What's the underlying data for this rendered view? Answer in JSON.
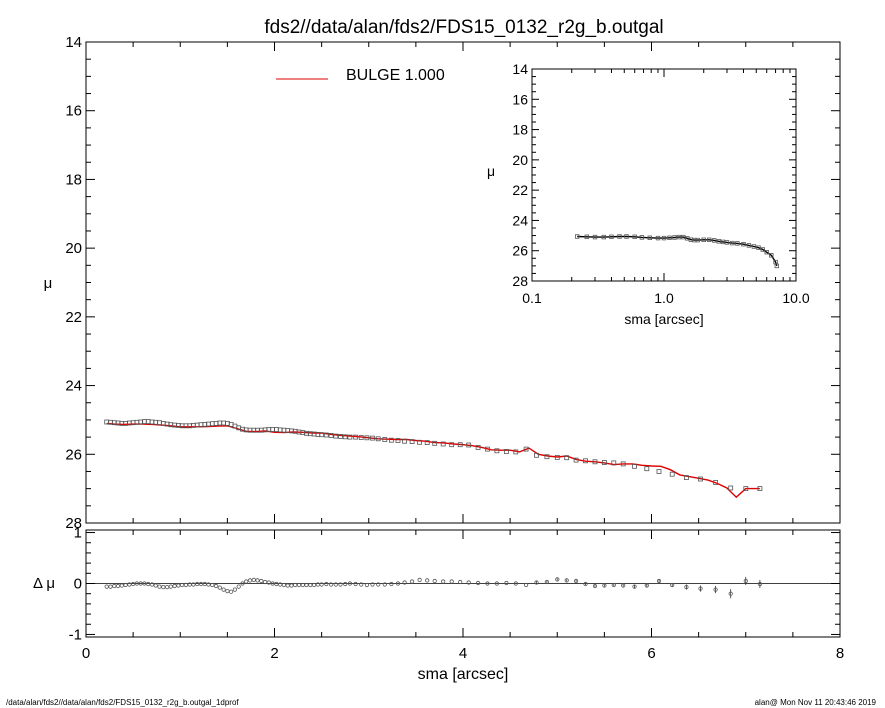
{
  "chart_data": [
    {
      "type": "line",
      "id": "main-profile",
      "title": "fds2//data/alan/fds2/FDS15_0132_r2g_b.outgal",
      "ylabel": "μ",
      "xlim": [
        0,
        8
      ],
      "ylim": [
        28,
        14
      ],
      "y_inverted": true,
      "grid": false,
      "yticks": [
        "14",
        "16",
        "18",
        "20",
        "22",
        "24",
        "26",
        "28"
      ],
      "legend": {
        "placement": "top-center",
        "label": "BULGE  1.000",
        "color": "#dd0000"
      },
      "series": [
        {
          "name": "data",
          "style": "squares",
          "color": "#555555",
          "x": [
            0.22,
            0.26,
            0.3,
            0.34,
            0.38,
            0.42,
            0.46,
            0.5,
            0.54,
            0.58,
            0.62,
            0.66,
            0.7,
            0.74,
            0.78,
            0.82,
            0.86,
            0.9,
            0.94,
            0.98,
            1.02,
            1.06,
            1.1,
            1.14,
            1.18,
            1.22,
            1.26,
            1.3,
            1.34,
            1.38,
            1.42,
            1.46,
            1.5,
            1.54,
            1.58,
            1.62,
            1.66,
            1.7,
            1.74,
            1.78,
            1.82,
            1.86,
            1.9,
            1.94,
            1.98,
            2.02,
            2.06,
            2.1,
            2.14,
            2.18,
            2.22,
            2.26,
            2.3,
            2.34,
            2.38,
            2.42,
            2.46,
            2.5,
            2.55,
            2.6,
            2.65,
            2.7,
            2.75,
            2.8,
            2.86,
            2.92,
            2.98,
            3.04,
            3.1,
            3.17,
            3.24,
            3.31,
            3.38,
            3.46,
            3.54,
            3.62,
            3.7,
            3.79,
            3.88,
            3.97,
            4.06,
            4.16,
            4.26,
            4.36,
            4.46,
            4.56,
            4.67,
            4.78,
            4.89,
            5.0,
            5.1,
            5.2,
            5.3,
            5.4,
            5.5,
            5.6,
            5.7,
            5.82,
            5.95,
            6.08,
            6.22,
            6.37,
            6.52,
            6.68,
            6.84,
            7.0,
            7.15
          ],
          "y": [
            25.06,
            25.07,
            25.08,
            25.09,
            25.1,
            25.1,
            25.09,
            25.08,
            25.07,
            25.06,
            25.05,
            25.05,
            25.06,
            25.07,
            25.08,
            25.1,
            25.12,
            25.14,
            25.15,
            25.16,
            25.17,
            25.17,
            25.17,
            25.16,
            25.15,
            25.14,
            25.13,
            25.12,
            25.11,
            25.1,
            25.09,
            25.09,
            25.1,
            25.13,
            25.18,
            25.23,
            25.27,
            25.29,
            25.3,
            25.3,
            25.3,
            25.3,
            25.29,
            25.28,
            25.28,
            25.28,
            25.29,
            25.3,
            25.31,
            25.32,
            25.33,
            25.35,
            25.37,
            25.39,
            25.4,
            25.41,
            25.42,
            25.43,
            25.44,
            25.45,
            25.47,
            25.48,
            25.49,
            25.5,
            25.5,
            25.51,
            25.52,
            25.53,
            25.55,
            25.57,
            25.59,
            25.6,
            25.62,
            25.63,
            25.65,
            25.66,
            25.68,
            25.7,
            25.72,
            25.72,
            25.73,
            25.8,
            25.85,
            25.9,
            25.92,
            25.93,
            25.85,
            26.03,
            26.07,
            26.09,
            26.1,
            26.17,
            26.19,
            26.22,
            26.24,
            26.25,
            26.28,
            26.35,
            26.42,
            26.5,
            26.58,
            26.68,
            26.72,
            26.82,
            26.98,
            27.0,
            27.0
          ]
        },
        {
          "name": "BULGE  1.000",
          "style": "line",
          "color": "#dd0000",
          "x": [
            0.22,
            0.3,
            0.4,
            0.5,
            0.6,
            0.7,
            0.8,
            0.9,
            1.0,
            1.1,
            1.2,
            1.3,
            1.4,
            1.5,
            1.6,
            1.7,
            1.8,
            1.9,
            2.0,
            2.1,
            2.2,
            2.3,
            2.4,
            2.5,
            2.6,
            2.7,
            2.8,
            2.9,
            3.0,
            3.1,
            3.2,
            3.3,
            3.4,
            3.5,
            3.6,
            3.7,
            3.8,
            3.9,
            4.0,
            4.1,
            4.2,
            4.3,
            4.4,
            4.5,
            4.6,
            4.7,
            4.8,
            4.9,
            5.0,
            5.1,
            5.2,
            5.3,
            5.4,
            5.5,
            5.6,
            5.7,
            5.8,
            5.9,
            6.0,
            6.1,
            6.2,
            6.3,
            6.4,
            6.5,
            6.6,
            6.7,
            6.8,
            6.9,
            7.0,
            7.1,
            7.15
          ],
          "y": [
            25.1,
            25.12,
            25.13,
            25.12,
            25.12,
            25.13,
            25.15,
            25.17,
            25.2,
            25.2,
            25.2,
            25.19,
            25.18,
            25.17,
            25.25,
            25.33,
            25.34,
            25.32,
            25.36,
            25.37,
            25.35,
            25.36,
            25.38,
            25.38,
            25.42,
            25.45,
            25.47,
            25.49,
            25.52,
            25.55,
            25.56,
            25.57,
            25.57,
            25.6,
            25.62,
            25.66,
            25.67,
            25.7,
            25.72,
            25.75,
            25.8,
            25.87,
            25.88,
            25.88,
            25.93,
            25.82,
            26.0,
            26.05,
            26.08,
            26.05,
            26.15,
            26.2,
            26.22,
            26.25,
            26.3,
            26.28,
            26.28,
            26.32,
            26.34,
            26.35,
            26.45,
            26.6,
            26.65,
            26.7,
            26.75,
            26.85,
            26.98,
            27.25,
            27.0,
            27.0,
            27.0
          ]
        }
      ]
    },
    {
      "type": "scatter",
      "id": "residuals",
      "xlabel": "sma [arcsec]",
      "ylabel": "Δ μ",
      "xlim": [
        0,
        8
      ],
      "ylim": [
        -1.05,
        1.05
      ],
      "grid": false,
      "xticks": [
        "0",
        "2",
        "4",
        "6",
        "8"
      ],
      "yticks": [
        "-1",
        "0",
        "1"
      ],
      "zero_line": true,
      "series": [
        {
          "name": "residual",
          "style": "circles",
          "color": "#555555",
          "x": [
            0.22,
            0.26,
            0.3,
            0.34,
            0.38,
            0.42,
            0.46,
            0.5,
            0.54,
            0.58,
            0.62,
            0.66,
            0.7,
            0.74,
            0.78,
            0.82,
            0.86,
            0.9,
            0.94,
            0.98,
            1.02,
            1.06,
            1.1,
            1.14,
            1.18,
            1.22,
            1.26,
            1.3,
            1.34,
            1.38,
            1.42,
            1.46,
            1.5,
            1.54,
            1.58,
            1.62,
            1.66,
            1.7,
            1.74,
            1.78,
            1.82,
            1.86,
            1.9,
            1.94,
            1.98,
            2.02,
            2.06,
            2.1,
            2.14,
            2.18,
            2.22,
            2.26,
            2.3,
            2.34,
            2.38,
            2.42,
            2.46,
            2.5,
            2.55,
            2.6,
            2.65,
            2.7,
            2.75,
            2.8,
            2.86,
            2.92,
            2.98,
            3.04,
            3.1,
            3.17,
            3.24,
            3.31,
            3.38,
            3.46,
            3.54,
            3.62,
            3.7,
            3.79,
            3.88,
            3.97,
            4.06,
            4.16,
            4.26,
            4.36,
            4.46,
            4.56,
            4.67,
            4.78,
            4.89,
            5.0,
            5.1,
            5.2,
            5.3,
            5.4,
            5.5,
            5.6,
            5.7,
            5.82,
            5.95,
            6.08,
            6.22,
            6.37,
            6.52,
            6.68,
            6.84,
            7.0,
            7.15
          ],
          "y": [
            -0.06,
            -0.06,
            -0.05,
            -0.05,
            -0.04,
            -0.03,
            -0.02,
            -0.01,
            0.0,
            0.0,
            0.0,
            -0.01,
            -0.02,
            -0.04,
            -0.06,
            -0.07,
            -0.07,
            -0.06,
            -0.05,
            -0.04,
            -0.03,
            -0.03,
            -0.02,
            -0.02,
            -0.01,
            -0.01,
            -0.01,
            -0.02,
            -0.03,
            -0.05,
            -0.08,
            -0.12,
            -0.15,
            -0.16,
            -0.12,
            -0.06,
            0.0,
            0.04,
            0.06,
            0.07,
            0.06,
            0.05,
            0.03,
            0.02,
            0.0,
            -0.01,
            -0.02,
            -0.03,
            -0.04,
            -0.04,
            -0.03,
            -0.03,
            -0.03,
            -0.03,
            -0.03,
            -0.03,
            -0.02,
            -0.02,
            -0.01,
            -0.02,
            -0.02,
            -0.02,
            -0.01,
            0.0,
            -0.01,
            -0.02,
            -0.03,
            -0.02,
            -0.02,
            -0.02,
            -0.01,
            0.0,
            0.02,
            0.04,
            0.07,
            0.06,
            0.05,
            0.04,
            0.04,
            0.03,
            0.02,
            0.01,
            0.0,
            0.0,
            0.01,
            0.0,
            -0.03,
            0.02,
            0.03,
            0.08,
            0.06,
            0.05,
            -0.01,
            -0.05,
            -0.04,
            -0.03,
            -0.04,
            -0.06,
            -0.04,
            0.05,
            -0.03,
            -0.07,
            -0.1,
            -0.12,
            -0.2,
            0.05,
            -0.01
          ],
          "err": [
            0.01,
            0.01,
            0.01,
            0.01,
            0.01,
            0.01,
            0.01,
            0.01,
            0.01,
            0.01,
            0.01,
            0.01,
            0.01,
            0.01,
            0.01,
            0.01,
            0.01,
            0.01,
            0.01,
            0.01,
            0.01,
            0.01,
            0.01,
            0.01,
            0.01,
            0.01,
            0.01,
            0.01,
            0.01,
            0.01,
            0.01,
            0.01,
            0.01,
            0.01,
            0.01,
            0.01,
            0.01,
            0.01,
            0.01,
            0.01,
            0.01,
            0.01,
            0.01,
            0.01,
            0.01,
            0.01,
            0.01,
            0.01,
            0.01,
            0.01,
            0.01,
            0.01,
            0.01,
            0.01,
            0.01,
            0.01,
            0.01,
            0.01,
            0.01,
            0.01,
            0.01,
            0.01,
            0.01,
            0.01,
            0.01,
            0.01,
            0.01,
            0.01,
            0.01,
            0.01,
            0.01,
            0.01,
            0.01,
            0.01,
            0.01,
            0.01,
            0.01,
            0.01,
            0.01,
            0.01,
            0.01,
            0.01,
            0.01,
            0.01,
            0.01,
            0.01,
            0.01,
            0.02,
            0.02,
            0.02,
            0.02,
            0.02,
            0.02,
            0.02,
            0.02,
            0.02,
            0.02,
            0.03,
            0.03,
            0.03,
            0.04,
            0.05,
            0.06,
            0.07,
            0.09,
            0.08,
            0.08
          ]
        }
      ]
    },
    {
      "type": "line",
      "id": "inset-log",
      "xlabel": "sma [arcsec]",
      "ylabel": "μ",
      "x_scale": "log",
      "xlim": [
        0.1,
        10.0
      ],
      "ylim": [
        28,
        14
      ],
      "y_inverted": true,
      "grid": false,
      "xticks": [
        "0.1",
        "1.0",
        "10.0"
      ],
      "yticks": [
        "14",
        "16",
        "18",
        "20",
        "22",
        "24",
        "26",
        "28"
      ],
      "series": [
        {
          "name": "data",
          "style": "squares-with-line",
          "color": "#555555",
          "x": [
            0.22,
            0.26,
            0.3,
            0.35,
            0.4,
            0.46,
            0.52,
            0.6,
            0.68,
            0.78,
            0.9,
            1.0,
            1.1,
            1.2,
            1.3,
            1.4,
            1.5,
            1.6,
            1.7,
            1.8,
            2.0,
            2.2,
            2.4,
            2.6,
            2.8,
            3.0,
            3.3,
            3.6,
            4.0,
            4.4,
            4.8,
            5.2,
            5.6,
            6.0,
            6.5,
            7.0,
            7.15
          ],
          "y": [
            25.06,
            25.08,
            25.1,
            25.1,
            25.08,
            25.06,
            25.06,
            25.08,
            25.12,
            25.15,
            25.17,
            25.17,
            25.15,
            25.13,
            25.1,
            25.1,
            25.18,
            25.27,
            25.3,
            25.3,
            25.28,
            25.28,
            25.32,
            25.38,
            25.42,
            25.45,
            25.5,
            25.52,
            25.57,
            25.65,
            25.72,
            25.8,
            25.92,
            26.1,
            26.3,
            26.75,
            27.0
          ]
        }
      ]
    }
  ],
  "footer": {
    "left": "/data/alan/fds2//data/alan/fds2/FDS15_0132_r2g_b.outgal_1dprof",
    "right": "alan@  Mon Nov 11 20:43:46 2019"
  }
}
